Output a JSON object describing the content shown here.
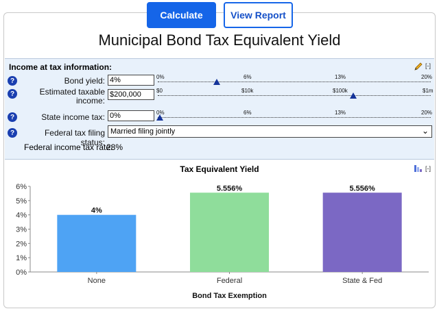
{
  "toolbar": {
    "calculate_label": "Calculate",
    "view_report_label": "View Report"
  },
  "page_title": "Municipal Bond Tax Equivalent Yield",
  "inputs": {
    "section_title": "Income at tax information:",
    "collapse_label": "[-]",
    "help_glyph": "?",
    "bond_yield": {
      "label": "Bond yield:",
      "value": "4%",
      "ticks": [
        "0%",
        "6%",
        "13%",
        "20%"
      ],
      "slider_fraction": 0.2
    },
    "taxable_income": {
      "label_line1": "Estimated taxable",
      "label_line2": "income:",
      "value": "$200,000",
      "ticks": [
        "$0",
        "$10k",
        "$100k",
        "$1m"
      ],
      "slider_fraction": 0.7
    },
    "state_tax": {
      "label": "State income tax:",
      "value": "0%",
      "ticks": [
        "0%",
        "6%",
        "13%",
        "20%"
      ],
      "slider_fraction": 0.0
    },
    "filing_status": {
      "label": "Federal tax filing status:",
      "selected": "Married filing jointly"
    },
    "federal_rate": {
      "label": "Federal income tax rate:",
      "value": "28%"
    }
  },
  "chart_header": {
    "collapse_label": "[-]"
  },
  "chart_data": {
    "type": "bar",
    "title": "Tax Equivalent Yield",
    "xlabel": "Bond Tax Exemption",
    "ylabel": "",
    "categories": [
      "None",
      "Federal",
      "State & Fed"
    ],
    "values": [
      4,
      5.556,
      5.556
    ],
    "data_labels": [
      "4%",
      "5.556%",
      "5.556%"
    ],
    "colors": [
      "#4ea3f4",
      "#8fdd9b",
      "#7b68c4"
    ],
    "ylim": [
      0,
      6
    ],
    "yticks": [
      "0%",
      "1%",
      "2%",
      "3%",
      "4%",
      "5%",
      "6%"
    ],
    "grid": false,
    "legend": "none"
  }
}
